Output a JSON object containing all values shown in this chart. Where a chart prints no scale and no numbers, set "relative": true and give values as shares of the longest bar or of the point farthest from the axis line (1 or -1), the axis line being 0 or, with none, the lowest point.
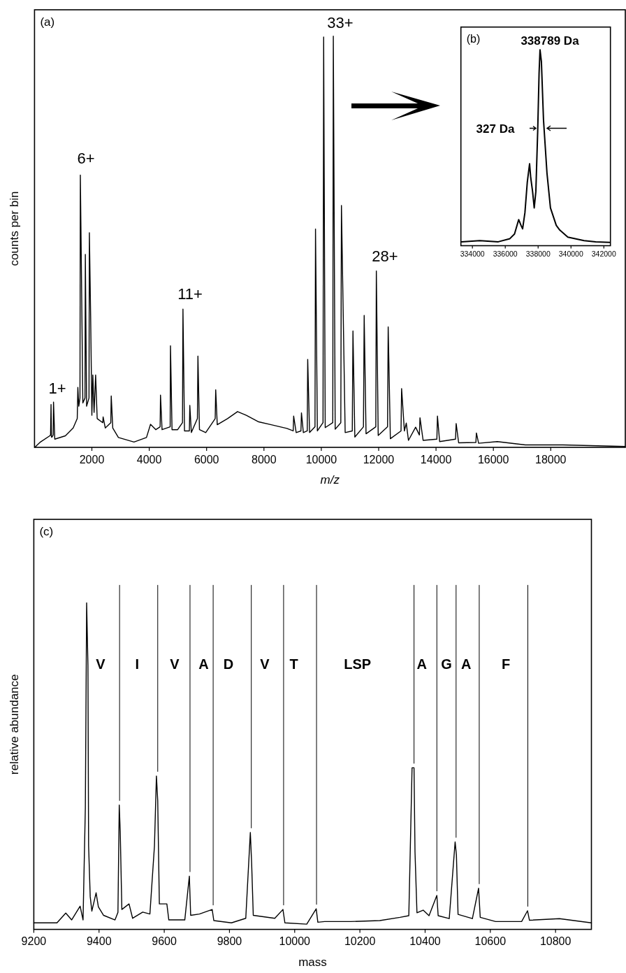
{
  "chart_data": [
    {
      "type": "line",
      "title": "(a)",
      "xlabel": "m/z",
      "ylabel": "counts per bin",
      "relative": true,
      "color": "#000000",
      "xlim": [
        0,
        20600
      ],
      "xticks": [
        2000,
        4000,
        6000,
        8000,
        10000,
        12000,
        14000,
        16000,
        18000
      ],
      "x": [
        10,
        206,
        532,
        560,
        576,
        590,
        608,
        650,
        663,
        706,
        1076,
        1348,
        1490,
        1511,
        1544,
        1585,
        1598,
        1642,
        1685,
        1760,
        1772,
        1816,
        1900,
        1913,
        1957,
        2000,
        2033,
        2077,
        2131,
        2185,
        2380,
        2392,
        2468,
        2660,
        2675,
        2729,
        2925,
        3469,
        3904,
        4045,
        4230,
        4380,
        4393,
        4447,
        4730,
        4741,
        4795,
        4991,
        5160,
        5176,
        5230,
        5400,
        5415,
        5469,
        5680,
        5698,
        5752,
        5970,
        6300,
        6318,
        6372,
        6731,
        7079,
        7384,
        7818,
        8254,
        8797,
        9020,
        9036,
        9124,
        9290,
        9308,
        9374,
        9510,
        9526,
        9591,
        9780,
        9798,
        9863,
        10060,
        10082,
        10136,
        10400,
        10419,
        10484,
        10680,
        10702,
        10767,
        10832,
        11080,
        11104,
        11169,
        11470,
        11495,
        11560,
        11900,
        11919,
        11984,
        12310,
        12332,
        12408,
        12780,
        12800,
        12897,
        12963,
        13039,
        13289,
        13420,
        13441,
        13550,
        14030,
        14050,
        14126,
        14680,
        14702,
        14789,
        15390,
        15408,
        15485,
        16137,
        17115,
        18419,
        20600
      ],
      "values": [
        0,
        0.013,
        0.028,
        0.03,
        0.104,
        0.025,
        0.025,
        0.03,
        0.11,
        0.02,
        0.028,
        0.047,
        0.07,
        0.146,
        0.1,
        0.12,
        0.662,
        0.389,
        0.108,
        0.12,
        0.469,
        0.1,
        0.12,
        0.522,
        0.321,
        0.078,
        0.176,
        0.085,
        0.176,
        0.07,
        0.06,
        0.074,
        0.047,
        0.06,
        0.125,
        0.047,
        0.024,
        0.013,
        0.024,
        0.056,
        0.043,
        0.05,
        0.127,
        0.043,
        0.05,
        0.247,
        0.043,
        0.043,
        0.06,
        0.336,
        0.04,
        0.04,
        0.102,
        0.036,
        0.07,
        0.222,
        0.043,
        0.036,
        0.07,
        0.14,
        0.055,
        0.07,
        0.087,
        0.078,
        0.062,
        0.055,
        0.046,
        0.04,
        0.076,
        0.036,
        0.04,
        0.084,
        0.036,
        0.04,
        0.214,
        0.036,
        0.05,
        0.531,
        0.04,
        0.06,
        0.998,
        0.048,
        0.06,
        1.0,
        0.044,
        0.06,
        0.588,
        0.313,
        0.036,
        0.04,
        0.283,
        0.025,
        0.05,
        0.321,
        0.033,
        0.05,
        0.429,
        0.029,
        0.05,
        0.293,
        0.021,
        0.04,
        0.143,
        0.04,
        0.059,
        0.017,
        0.049,
        0.03,
        0.072,
        0.017,
        0.02,
        0.076,
        0.014,
        0.02,
        0.058,
        0.011,
        0.012,
        0.035,
        0.01,
        0.014,
        0.006,
        0.006,
        0.002
      ],
      "annotations": [
        "1+",
        "6+",
        "11+",
        "33+",
        "28+"
      ]
    },
    {
      "type": "line",
      "title": "(b)",
      "relative": true,
      "color": "#000000",
      "xlim": [
        333300,
        342400
      ],
      "xticks": [
        334000,
        336000,
        338000,
        340000,
        342000
      ],
      "x": [
        333345,
        334446,
        335575,
        336280,
        336563,
        336816,
        336958,
        337056,
        337197,
        337339,
        337409,
        337480,
        337550,
        337663,
        337762,
        337861,
        337974,
        338058,
        338115,
        338199,
        338326,
        338538,
        338750,
        339103,
        339314,
        339808,
        340796,
        341501,
        342348
      ],
      "values": [
        0.02,
        0.026,
        0.02,
        0.036,
        0.06,
        0.133,
        0.104,
        0.086,
        0.169,
        0.323,
        0.371,
        0.418,
        0.347,
        0.276,
        0.193,
        0.276,
        0.584,
        0.881,
        1.0,
        0.94,
        0.644,
        0.371,
        0.193,
        0.104,
        0.08,
        0.044,
        0.026,
        0.02,
        0.017
      ],
      "annotations": [
        "338789 Da",
        "327 Da"
      ]
    },
    {
      "type": "line",
      "title": "(c)",
      "xlabel": "mass",
      "ylabel": "relative abundance",
      "relative": true,
      "color": "#000000",
      "xlim": [
        9200,
        10910
      ],
      "xticks": [
        9200,
        9400,
        9600,
        9800,
        10000,
        10200,
        10400,
        10600,
        10800
      ],
      "x": [
        9200,
        9271,
        9298,
        9316,
        9342,
        9351,
        9358,
        9362,
        9366,
        9368,
        9373,
        9378,
        9391,
        9398,
        9414,
        9449,
        9458,
        9462,
        9465,
        9470,
        9492,
        9503,
        9534,
        9556,
        9570,
        9576,
        9580,
        9585,
        9608,
        9614,
        9663,
        9677,
        9681,
        9708,
        9747,
        9752,
        9806,
        9850,
        9864,
        9868,
        9873,
        9939,
        9964,
        9970,
        10037,
        10066,
        10071,
        10092,
        10172,
        10261,
        10323,
        10350,
        10360,
        10366,
        10369,
        10375,
        10394,
        10412,
        10436,
        10440,
        10474,
        10492,
        10496,
        10501,
        10545,
        10564,
        10569,
        10616,
        10696,
        10714,
        10720,
        10812,
        10910
      ],
      "values": [
        0.02,
        0.02,
        0.05,
        0.029,
        0.071,
        0.029,
        0.372,
        1.0,
        0.809,
        0.256,
        0.1,
        0.056,
        0.112,
        0.069,
        0.043,
        0.029,
        0.052,
        0.381,
        0.301,
        0.061,
        0.078,
        0.034,
        0.053,
        0.047,
        0.256,
        0.47,
        0.394,
        0.078,
        0.078,
        0.029,
        0.029,
        0.163,
        0.043,
        0.047,
        0.061,
        0.027,
        0.02,
        0.034,
        0.297,
        0.203,
        0.043,
        0.034,
        0.061,
        0.02,
        0.016,
        0.063,
        0.022,
        0.024,
        0.024,
        0.027,
        0.037,
        0.042,
        0.495,
        0.495,
        0.237,
        0.051,
        0.059,
        0.042,
        0.104,
        0.042,
        0.033,
        0.268,
        0.228,
        0.046,
        0.033,
        0.126,
        0.037,
        0.024,
        0.024,
        0.057,
        0.028,
        0.033,
        0.02
      ],
      "ref_lines": [
        {
          "axis": "x",
          "value": 9463
        },
        {
          "axis": "x",
          "value": 9580
        },
        {
          "axis": "x",
          "value": 9679
        },
        {
          "axis": "x",
          "value": 9750
        },
        {
          "axis": "x",
          "value": 9867
        },
        {
          "axis": "x",
          "value": 9966
        },
        {
          "axis": "x",
          "value": 10067
        },
        {
          "axis": "x",
          "value": 10366
        },
        {
          "axis": "x",
          "value": 10436
        },
        {
          "axis": "x",
          "value": 10495
        },
        {
          "axis": "x",
          "value": 10566
        },
        {
          "axis": "x",
          "value": 10715
        }
      ],
      "annotations": [
        "V",
        "I",
        "V",
        "A",
        "D",
        "V",
        "T",
        "LSP",
        "A",
        "G",
        "A",
        "F"
      ]
    }
  ]
}
